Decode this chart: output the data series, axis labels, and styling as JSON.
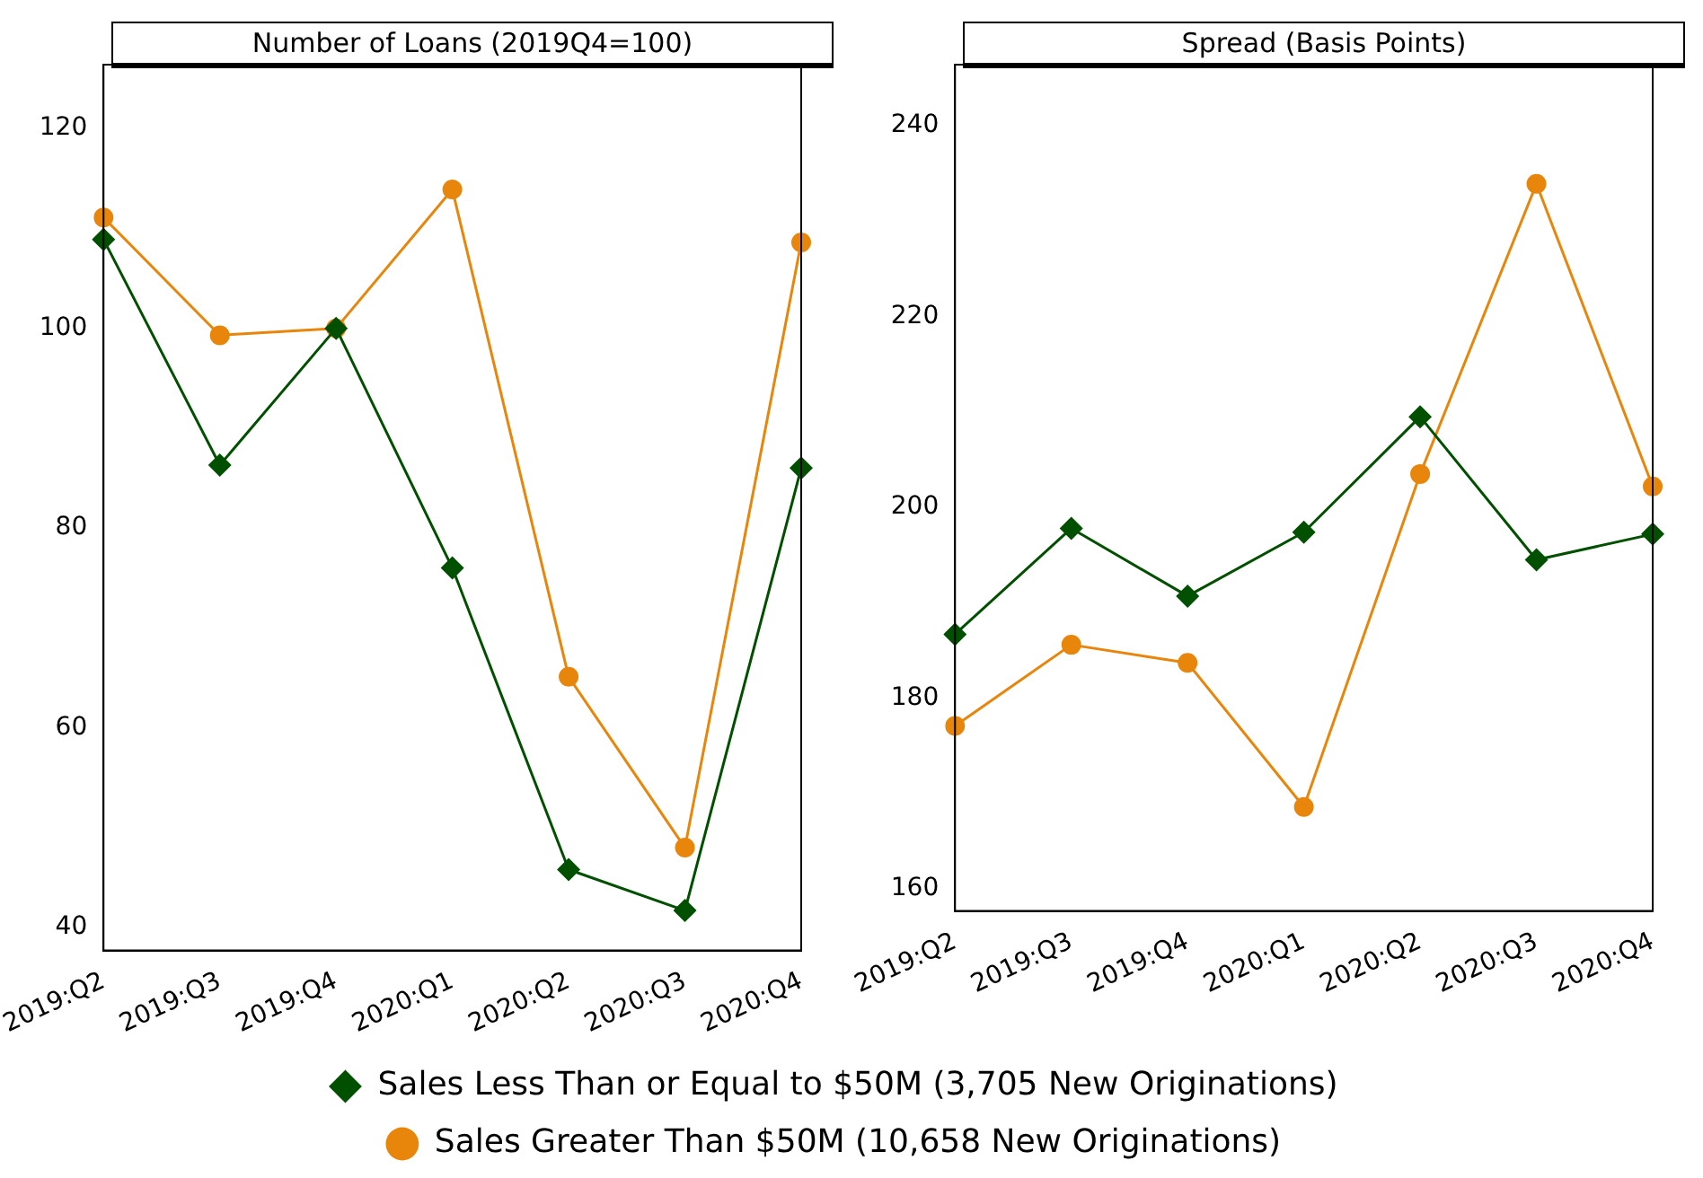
{
  "chart_data": [
    {
      "type": "line",
      "title": "Number of Loans (2019Q4=100)",
      "categories": [
        "2019:Q2",
        "2019:Q3",
        "2019:Q4",
        "2020:Q1",
        "2020:Q2",
        "2020:Q3",
        "2020:Q4"
      ],
      "series": [
        {
          "name": "Sales Less Than or Equal to $50M (3,705 New Originations)",
          "color": "#005000",
          "marker": "diamond",
          "values": [
            108.9,
            86.3,
            100,
            76,
            45.8,
            41.7,
            86
          ]
        },
        {
          "name": "Sales Greater Than $50M (10,658 New Originations)",
          "color": "#e8860c",
          "marker": "circle",
          "values": [
            111.1,
            99.3,
            100,
            113.9,
            65.1,
            48,
            108.6
          ]
        }
      ],
      "ylim": [
        37.7,
        126.4
      ],
      "yticks": [
        40,
        60,
        80,
        100,
        120
      ],
      "grid": false,
      "legend": "bottom",
      "line_style": "solid"
    },
    {
      "type": "line",
      "title": "Spread (Basis Points)",
      "categories": [
        "2019:Q2",
        "2019:Q3",
        "2019:Q4",
        "2020:Q1",
        "2020:Q2",
        "2020:Q3",
        "2020:Q4"
      ],
      "series": [
        {
          "color": "#005000",
          "marker": "diamond",
          "values": [
            186.7,
            197.8,
            190.7,
            197.4,
            209.5,
            194.5,
            197.2
          ]
        },
        {
          "color": "#e8860c",
          "marker": "circle",
          "values": [
            177.1,
            185.6,
            183.7,
            168.6,
            203.5,
            233.9,
            202.2
          ]
        }
      ],
      "ylim": [
        157.7,
        246.4
      ],
      "yticks": [
        160,
        180,
        200,
        220,
        240
      ],
      "grid": false,
      "legend": false,
      "line_style": "solid"
    }
  ]
}
